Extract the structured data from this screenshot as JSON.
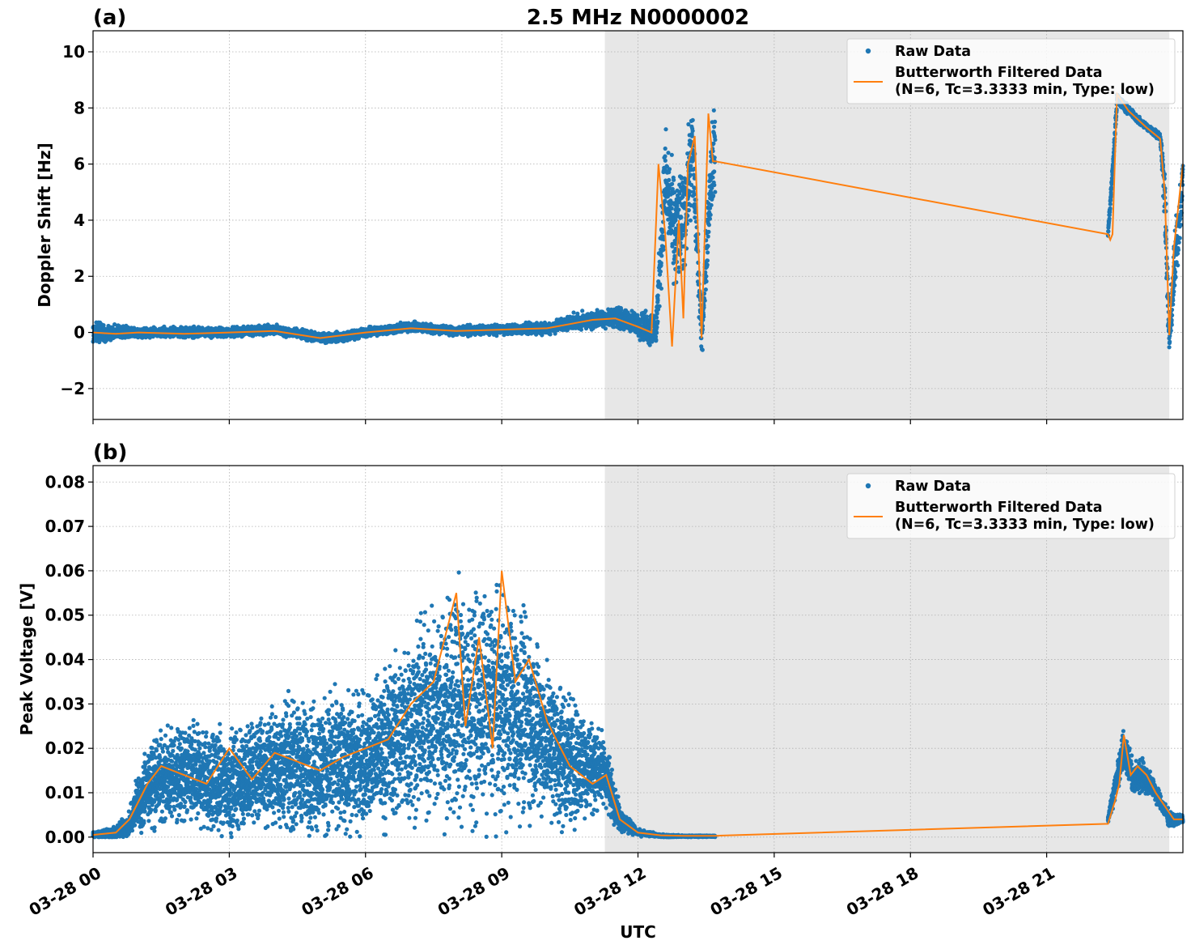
{
  "chart_data": [
    {
      "type": "scatter",
      "panel_label": "(a)",
      "title": "2.5 MHz N0000002",
      "xlabel": "",
      "ylabel": "Doppler Shift [Hz]",
      "xlim_hours": [
        0,
        24
      ],
      "ylim": [
        -3.1,
        10.75
      ],
      "yticks": [
        -2,
        0,
        2,
        4,
        6,
        8,
        10
      ],
      "ytick_labels": [
        "−2",
        "0",
        "2",
        "4",
        "6",
        "8",
        "10"
      ],
      "grid": true,
      "legend_position": "top-right",
      "shaded_region_hours": [
        11.27,
        23.7
      ],
      "series": [
        {
          "name": "Raw Data",
          "kind": "points",
          "color": "#1f77b4",
          "segments": [
            {
              "x": [
                0,
                0.5,
                1,
                2,
                3,
                4,
                5,
                5.5,
                6,
                7,
                8,
                9,
                10,
                10.5,
                11,
                11.5,
                12,
                12.4,
                12.6,
                12.8,
                13.0,
                13.2,
                13.4,
                13.6,
                13.7
              ],
              "y": [
                0,
                0,
                0,
                0,
                0,
                0.1,
                -0.2,
                -0.15,
                0,
                0.2,
                0.05,
                0.1,
                0.15,
                0.35,
                0.45,
                0.55,
                0.3,
                0.1,
                5.5,
                3.5,
                4.0,
                6.5,
                -0.2,
                5.5,
                6.5
              ],
              "spread": [
                0.45,
                0.3,
                0.2,
                0.2,
                0.2,
                0.2,
                0.2,
                0.2,
                0.2,
                0.2,
                0.2,
                0.2,
                0.25,
                0.3,
                0.35,
                0.4,
                0.5,
                0.9,
                2.0,
                2.3,
                2.3,
                2.0,
                0.9,
                1.8,
                2.2
              ]
            },
            {
              "x": [
                22.35,
                22.45,
                22.55,
                22.7,
                23.0,
                23.3,
                23.5,
                23.6,
                23.65,
                23.7,
                23.8,
                24.0
              ],
              "y": [
                3.5,
                5.7,
                8.3,
                8.1,
                7.6,
                7.2,
                7.0,
                5.0,
                2.0,
                -0.2,
                2.0,
                5.5
              ],
              "spread": [
                0.2,
                0.3,
                0.3,
                0.2,
                0.15,
                0.15,
                0.2,
                1.2,
                1.5,
                0.8,
                1.5,
                1.0
              ]
            }
          ]
        },
        {
          "name": "Butterworth Filtered Data",
          "name_line2": "(N=6, Tc=3.3333 min, Type: low)",
          "kind": "line",
          "color": "#ff7f0e",
          "x": [
            0,
            0.5,
            1,
            2,
            3,
            4,
            5,
            5.5,
            6,
            7,
            8,
            9,
            10,
            10.5,
            11,
            11.5,
            12,
            12.3,
            12.45,
            12.6,
            12.75,
            12.9,
            13.0,
            13.1,
            13.25,
            13.4,
            13.55,
            13.65,
            13.7,
            22.35,
            22.4,
            22.45,
            22.55,
            22.8,
            23.2,
            23.5,
            23.6,
            23.7,
            23.8,
            24.0
          ],
          "y": [
            0,
            -0.05,
            0,
            -0.05,
            0,
            0.05,
            -0.2,
            -0.1,
            0,
            0.15,
            0.05,
            0.1,
            0.15,
            0.3,
            0.45,
            0.5,
            0.2,
            0,
            6.0,
            3.5,
            -0.5,
            4.0,
            0.5,
            6.0,
            7.0,
            -0.2,
            7.8,
            6.1,
            6.1,
            3.5,
            3.3,
            3.5,
            8.5,
            7.9,
            7.3,
            6.9,
            5.0,
            -0.1,
            3.0,
            6.0
          ]
        }
      ]
    },
    {
      "type": "scatter",
      "panel_label": "(b)",
      "title": "",
      "xlabel": "UTC",
      "ylabel": "Peak Voltage [V]",
      "xlim_hours": [
        0,
        24
      ],
      "ylim": [
        -0.0035,
        0.0837
      ],
      "yticks": [
        0,
        0.01,
        0.02,
        0.03,
        0.04,
        0.05,
        0.06,
        0.07,
        0.08
      ],
      "ytick_labels": [
        "0.00",
        "0.01",
        "0.02",
        "0.03",
        "0.04",
        "0.05",
        "0.06",
        "0.07",
        "0.08"
      ],
      "xticks_hours": [
        0,
        3,
        6,
        9,
        12,
        15,
        18,
        21
      ],
      "xtick_labels": [
        "03-28 00",
        "03-28 03",
        "03-28 06",
        "03-28 09",
        "03-28 12",
        "03-28 15",
        "03-28 18",
        "03-28 21"
      ],
      "grid": true,
      "legend_position": "top-right",
      "shaded_region_hours": [
        11.27,
        23.7
      ],
      "series": [
        {
          "name": "Raw Data",
          "kind": "points",
          "color": "#1f77b4",
          "segments": [
            {
              "x": [
                0,
                0.5,
                0.8,
                1.0,
                1.3,
                2.0,
                3.0,
                4.0,
                5.0,
                6.0,
                7.0,
                7.5,
                8.0,
                8.5,
                9.0,
                9.5,
                10.0,
                10.5,
                11.0,
                11.3,
                11.6,
                12.0,
                12.5,
                13.0,
                13.7
              ],
              "y": [
                0.0005,
                0.001,
                0.003,
                0.008,
                0.013,
                0.014,
                0.012,
                0.016,
                0.016,
                0.017,
                0.025,
                0.028,
                0.03,
                0.03,
                0.03,
                0.028,
                0.022,
                0.017,
                0.016,
                0.014,
                0.004,
                0.001,
                0.0003,
                0.0002,
                0.0002
              ],
              "spread": [
                0.0008,
                0.0015,
                0.003,
                0.007,
                0.011,
                0.013,
                0.013,
                0.015,
                0.018,
                0.017,
                0.024,
                0.027,
                0.03,
                0.028,
                0.028,
                0.026,
                0.02,
                0.018,
                0.012,
                0.009,
                0.003,
                0.0008,
                0.0004,
                0.0002,
                0.0002
              ]
            },
            {
              "x": [
                22.35,
                22.5,
                22.7,
                22.9,
                23.1,
                23.3,
                23.5,
                23.7,
                24.0
              ],
              "y": [
                0.004,
                0.011,
                0.02,
                0.013,
                0.014,
                0.012,
                0.008,
                0.004,
                0.004
              ],
              "spread": [
                0.001,
                0.003,
                0.005,
                0.004,
                0.005,
                0.003,
                0.002,
                0.002,
                0.001
              ]
            }
          ]
        },
        {
          "name": "Butterworth Filtered Data",
          "name_line2": "(N=6, Tc=3.3333 min, Type: low)",
          "kind": "line",
          "color": "#ff7f0e",
          "x": [
            0,
            0.5,
            0.8,
            1.0,
            1.2,
            1.5,
            2.0,
            2.5,
            3.0,
            3.5,
            4.0,
            4.5,
            5.0,
            5.5,
            6.0,
            6.5,
            7.0,
            7.5,
            8.0,
            8.2,
            8.5,
            8.8,
            9.0,
            9.3,
            9.6,
            10.0,
            10.5,
            11.0,
            11.3,
            11.6,
            12.0,
            12.5,
            13.0,
            13.7,
            22.35,
            22.5,
            22.6,
            22.7,
            22.85,
            23.0,
            23.2,
            23.4,
            23.6,
            23.8,
            24.0
          ],
          "y": [
            0.0005,
            0.001,
            0.004,
            0.008,
            0.012,
            0.016,
            0.014,
            0.012,
            0.02,
            0.013,
            0.019,
            0.017,
            0.015,
            0.018,
            0.02,
            0.022,
            0.03,
            0.035,
            0.055,
            0.025,
            0.045,
            0.02,
            0.06,
            0.035,
            0.04,
            0.026,
            0.016,
            0.012,
            0.014,
            0.004,
            0.001,
            0.0004,
            0.0003,
            0.0003,
            0.003,
            0.008,
            0.012,
            0.023,
            0.014,
            0.016,
            0.014,
            0.01,
            0.007,
            0.004,
            0.004
          ]
        }
      ]
    }
  ]
}
